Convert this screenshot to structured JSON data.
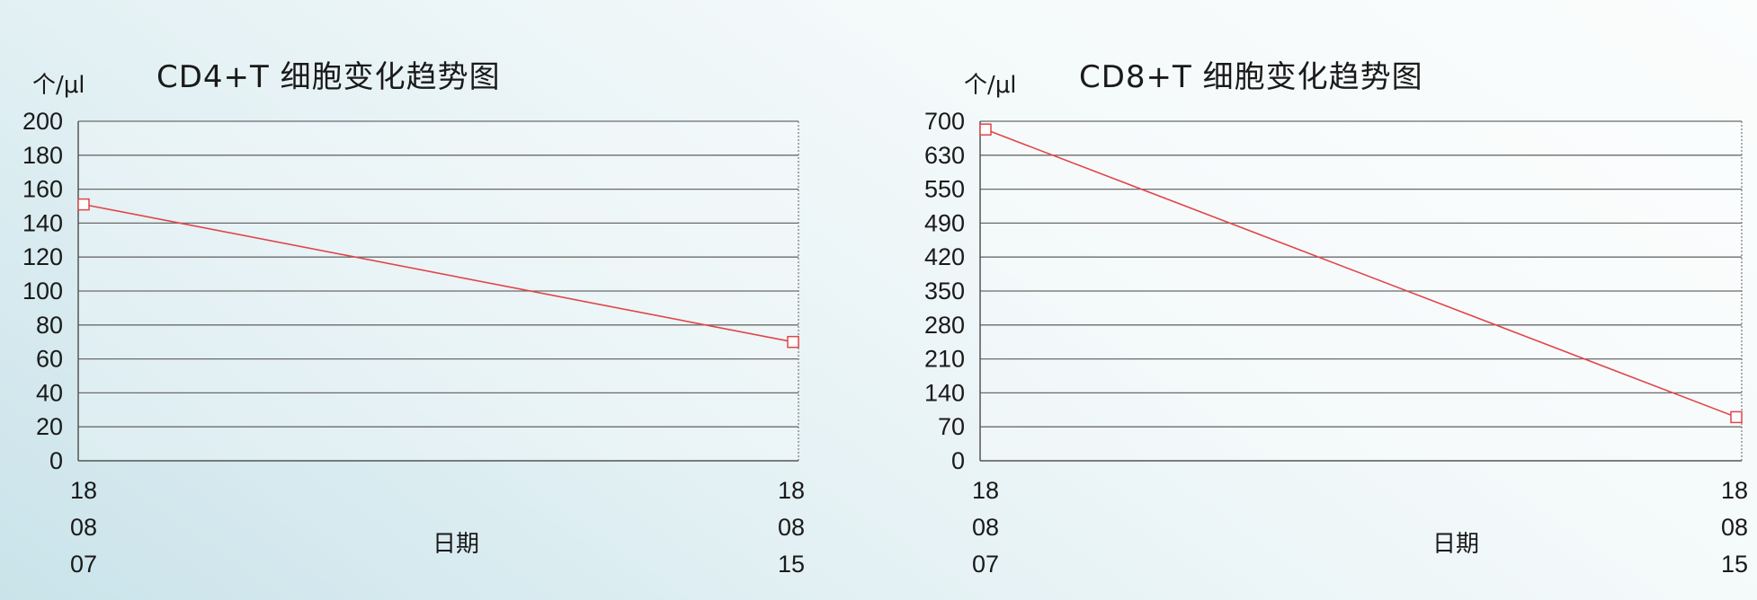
{
  "chart_data": [
    {
      "type": "line",
      "title": "CD4+T 细胞变化趋势图",
      "xlabel": "日期",
      "ylabel": "个/μl",
      "categories": [
        "18\n08\n07",
        "18\n08\n15"
      ],
      "x_tick_lines": [
        [
          "18",
          "08",
          "07"
        ],
        [
          "18",
          "08",
          "15"
        ]
      ],
      "y_ticks": [
        0,
        20,
        40,
        60,
        80,
        100,
        120,
        140,
        160,
        180,
        200
      ],
      "ylim": [
        0,
        200
      ],
      "grid": true,
      "series": [
        {
          "values": [
            151,
            70
          ],
          "color": "#e0454a",
          "marker": "square-open"
        }
      ]
    },
    {
      "type": "line",
      "title": "CD8+T 细胞变化趋势图",
      "xlabel": "日期",
      "ylabel": "个/μl",
      "categories": [
        "18\n08\n07",
        "18\n08\n15"
      ],
      "x_tick_lines": [
        [
          "18",
          "08",
          "07"
        ],
        [
          "18",
          "08",
          "15"
        ]
      ],
      "y_ticks": [
        0,
        70,
        140,
        210,
        280,
        350,
        420,
        490,
        550,
        630,
        700
      ],
      "ylim": [
        0,
        700
      ],
      "grid": true,
      "series": [
        {
          "values": [
            683,
            90
          ],
          "color": "#e0454a",
          "marker": "square-open"
        }
      ]
    }
  ]
}
